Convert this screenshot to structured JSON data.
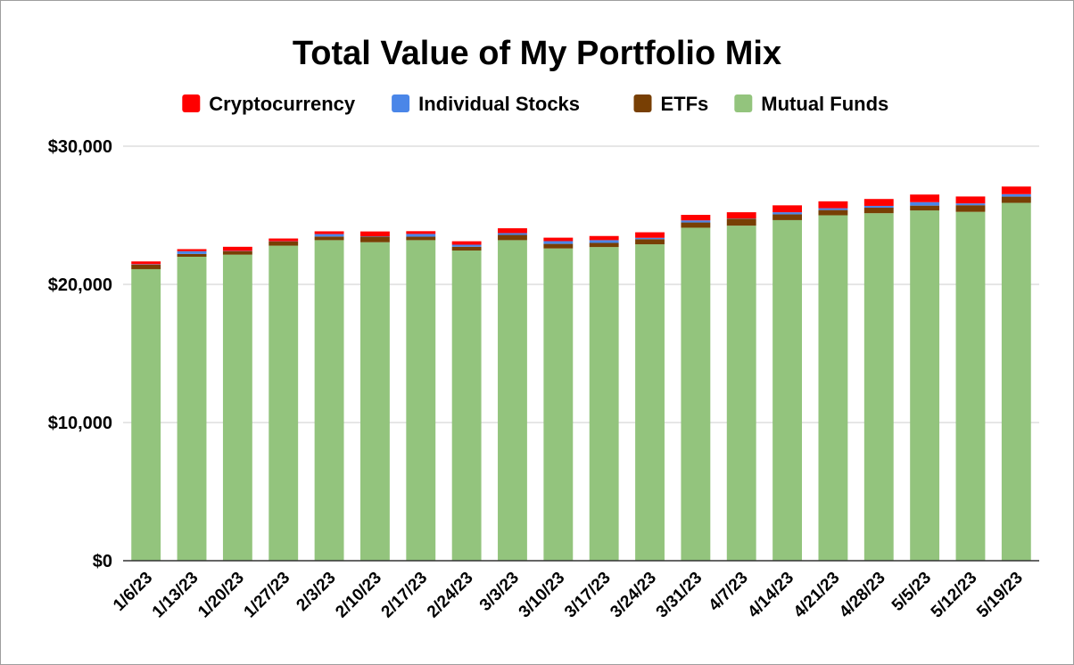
{
  "chart_data": {
    "type": "bar",
    "stacked": true,
    "title": "Total Value of My Portfolio Mix",
    "xlabel": "",
    "ylabel": "",
    "ylim": [
      0,
      30000
    ],
    "yticks": [
      "$0",
      "$10,000",
      "$20,000",
      "$30,000"
    ],
    "grid": true,
    "legend_position": "top",
    "categories": [
      "1/6/23",
      "1/13/23",
      "1/20/23",
      "1/27/23",
      "2/3/23",
      "2/10/23",
      "2/17/23",
      "2/24/23",
      "3/3/23",
      "3/10/23",
      "3/17/23",
      "3/24/23",
      "3/31/23",
      "4/7/23",
      "4/14/23",
      "4/21/23",
      "4/28/23",
      "5/5/23",
      "5/12/23",
      "5/19/23"
    ],
    "series": [
      {
        "name": "Mutual Funds",
        "color": "#93c47d",
        "values": [
          21100,
          22000,
          22150,
          22800,
          23200,
          23050,
          23200,
          22450,
          23200,
          22600,
          22700,
          22900,
          24100,
          24250,
          24650,
          25000,
          25150,
          25350,
          25250,
          25900
        ]
      },
      {
        "name": "ETFs",
        "color": "#783f04",
        "values": [
          330,
          200,
          250,
          300,
          260,
          400,
          250,
          270,
          380,
          330,
          300,
          370,
          380,
          500,
          420,
          380,
          400,
          350,
          480,
          450
        ]
      },
      {
        "name": "Individual Stocks",
        "color": "#4a86e8",
        "values": [
          30,
          200,
          20,
          20,
          180,
          30,
          200,
          150,
          130,
          200,
          200,
          100,
          150,
          20,
          150,
          130,
          130,
          250,
          130,
          180
        ]
      },
      {
        "name": "Cryptocurrency",
        "color": "#ff0000",
        "values": [
          200,
          150,
          300,
          200,
          200,
          350,
          200,
          250,
          350,
          250,
          300,
          400,
          400,
          450,
          500,
          500,
          500,
          550,
          500,
          550
        ]
      }
    ],
    "legend_order": [
      "Cryptocurrency",
      "Individual Stocks",
      "ETFs",
      "Mutual Funds"
    ]
  }
}
